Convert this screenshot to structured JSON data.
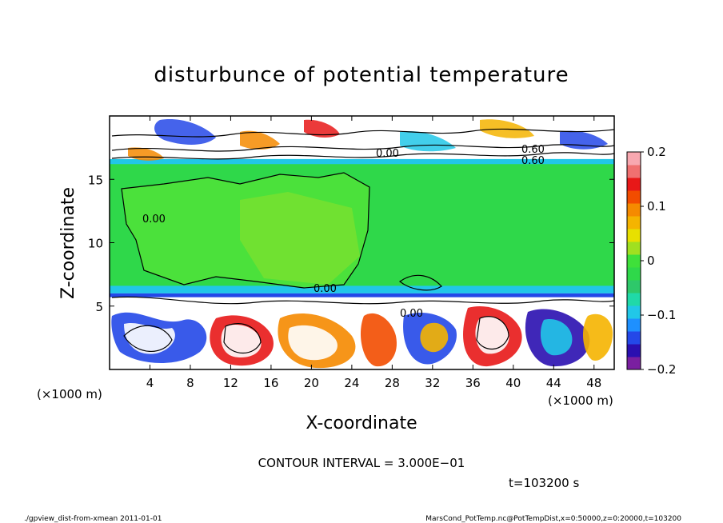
{
  "chart_data": {
    "type": "heatmap",
    "title": "disturbunce of potential temperature",
    "xlabel": "X-coordinate",
    "ylabel": "Z-coordinate",
    "x_unit_left": "(×1000 m)",
    "x_unit_right": "(×1000 m)",
    "xlim": [
      0,
      50
    ],
    "ylim": [
      0,
      20
    ],
    "x_ticks": [
      "4",
      "8",
      "12",
      "16",
      "20",
      "24",
      "28",
      "32",
      "36",
      "40",
      "44",
      "48"
    ],
    "x_tick_values": [
      4,
      8,
      12,
      16,
      20,
      24,
      28,
      32,
      36,
      40,
      44,
      48
    ],
    "y_ticks": [
      "5",
      "10",
      "15"
    ],
    "y_tick_values": [
      5,
      10,
      15
    ],
    "colorbar": {
      "range": [
        -0.2,
        0.2
      ],
      "ticks": [
        "0.2",
        "0.1",
        "0",
        "−0.1",
        "−0.2"
      ],
      "tick_values": [
        0.2,
        0.1,
        0,
        -0.1,
        -0.2
      ],
      "colors": [
        "#7a1fa0",
        "#2a0fb0",
        "#2448e8",
        "#1e90ff",
        "#21c7e8",
        "#20d9a8",
        "#2ec86a",
        "#2fd84a",
        "#3fe03a",
        "#a0e020",
        "#e8e000",
        "#f5b400",
        "#f58a00",
        "#f24c00",
        "#e81818",
        "#f07070",
        "#f8a8b0"
      ]
    },
    "contour_labels": [
      "0.00",
      "0.00",
      "0.00",
      "0.00",
      "0.60",
      "0.60"
    ],
    "contour_interval_text": "CONTOUR INTERVAL = 3.000E−01",
    "time_text": "t=103200 s"
  },
  "footer": {
    "left": "./gpview_dist-from-xmean  2011-01-01",
    "right": "MarsCond_PotTemp.nc@PotTempDist,x=0:50000,z=0:20000,t=103200"
  }
}
